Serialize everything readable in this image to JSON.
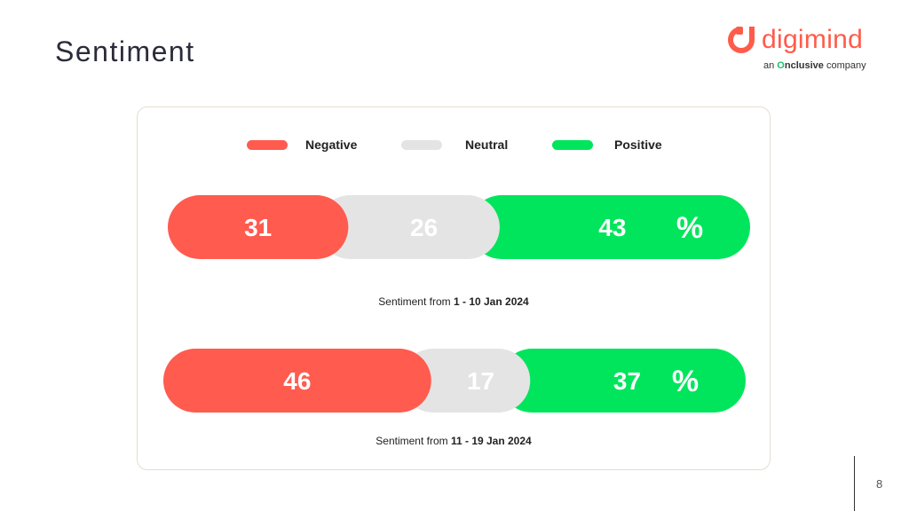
{
  "page": {
    "title": "Sentiment",
    "number": "8"
  },
  "logo": {
    "word": "digimind",
    "tag_prefix": "an ",
    "tag_o": "O",
    "tag_brand": "nclusive",
    "tag_suffix": " company"
  },
  "colors": {
    "negative": "#ff5b4f",
    "neutral": "#e4e4e4",
    "positive": "#00e55c",
    "brand": "#ff5b4a"
  },
  "chart_data": {
    "type": "bar",
    "stacked": true,
    "orientation": "horizontal",
    "unit": "%",
    "legend": [
      "Negative",
      "Neutral",
      "Positive"
    ],
    "legend_placement": "top",
    "rows": [
      {
        "caption_prefix": "Sentiment from ",
        "caption_period": "1 - 10 Jan 2024",
        "values": [
          31,
          26,
          43
        ]
      },
      {
        "caption_prefix": "Sentiment from ",
        "caption_period": "11 - 19 Jan 2024",
        "values": [
          46,
          17,
          37
        ]
      }
    ]
  }
}
